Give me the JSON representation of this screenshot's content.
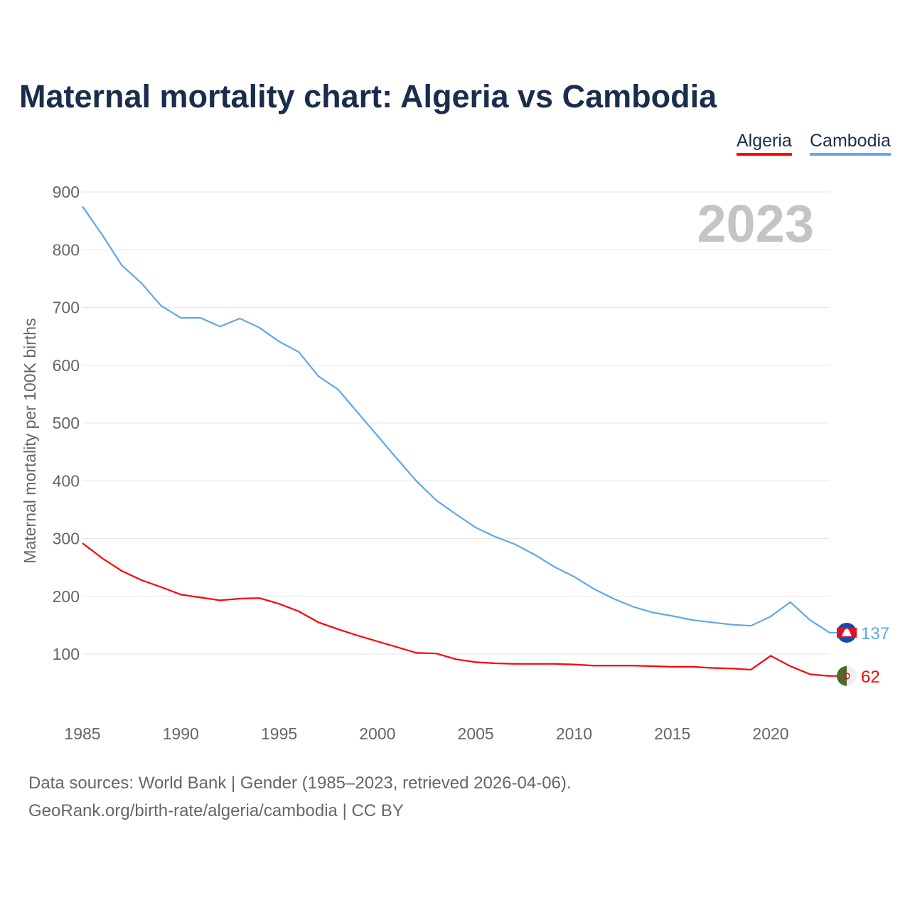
{
  "title": "Maternal mortality chart: Algeria vs Cambodia",
  "source_line1": "Data sources: World Bank | Gender (1985–2023, retrieved 2026-04-06).",
  "source_line2": "GeoRank.org/birth-rate/algeria/cambodia | CC BY",
  "chart_data": {
    "type": "line",
    "title": "Maternal mortality chart: Algeria vs Cambodia",
    "ylabel": "Maternal mortality per 100K births",
    "xlabel": "",
    "year_label": "2023",
    "xlim": [
      1985,
      2023
    ],
    "ylim": [
      0,
      900
    ],
    "yticks": [
      100,
      200,
      300,
      400,
      500,
      600,
      700,
      800,
      900
    ],
    "xticks": [
      1985,
      1990,
      1995,
      2000,
      2005,
      2010,
      2015,
      2020
    ],
    "grid": true,
    "legend_position": "top-right",
    "x": [
      1985,
      1986,
      1987,
      1988,
      1989,
      1990,
      1991,
      1992,
      1993,
      1994,
      1995,
      1996,
      1997,
      1998,
      1999,
      2000,
      2001,
      2002,
      2003,
      2004,
      2005,
      2006,
      2007,
      2008,
      2009,
      2010,
      2011,
      2012,
      2013,
      2014,
      2015,
      2016,
      2017,
      2018,
      2019,
      2020,
      2021,
      2022,
      2023
    ],
    "series": [
      {
        "name": "Algeria",
        "color": "#ff0000",
        "end_label": "62",
        "values": [
          292,
          266,
          244,
          228,
          216,
          203,
          198,
          193,
          196,
          197,
          187,
          174,
          155,
          143,
          132,
          122,
          112,
          102,
          101,
          91,
          86,
          84,
          83,
          83,
          83,
          82,
          80,
          80,
          80,
          79,
          78,
          78,
          76,
          75,
          73,
          97,
          79,
          65,
          62
        ]
      },
      {
        "name": "Cambodia",
        "color": "#5fa8ea",
        "end_label": "137",
        "values": [
          875,
          826,
          773,
          742,
          703,
          682,
          682,
          667,
          681,
          665,
          641,
          623,
          581,
          558,
          518,
          478,
          438,
          399,
          366,
          342,
          319,
          303,
          290,
          272,
          251,
          234,
          213,
          196,
          182,
          172,
          166,
          159,
          155,
          151,
          149,
          165,
          190,
          159,
          137
        ]
      }
    ]
  }
}
